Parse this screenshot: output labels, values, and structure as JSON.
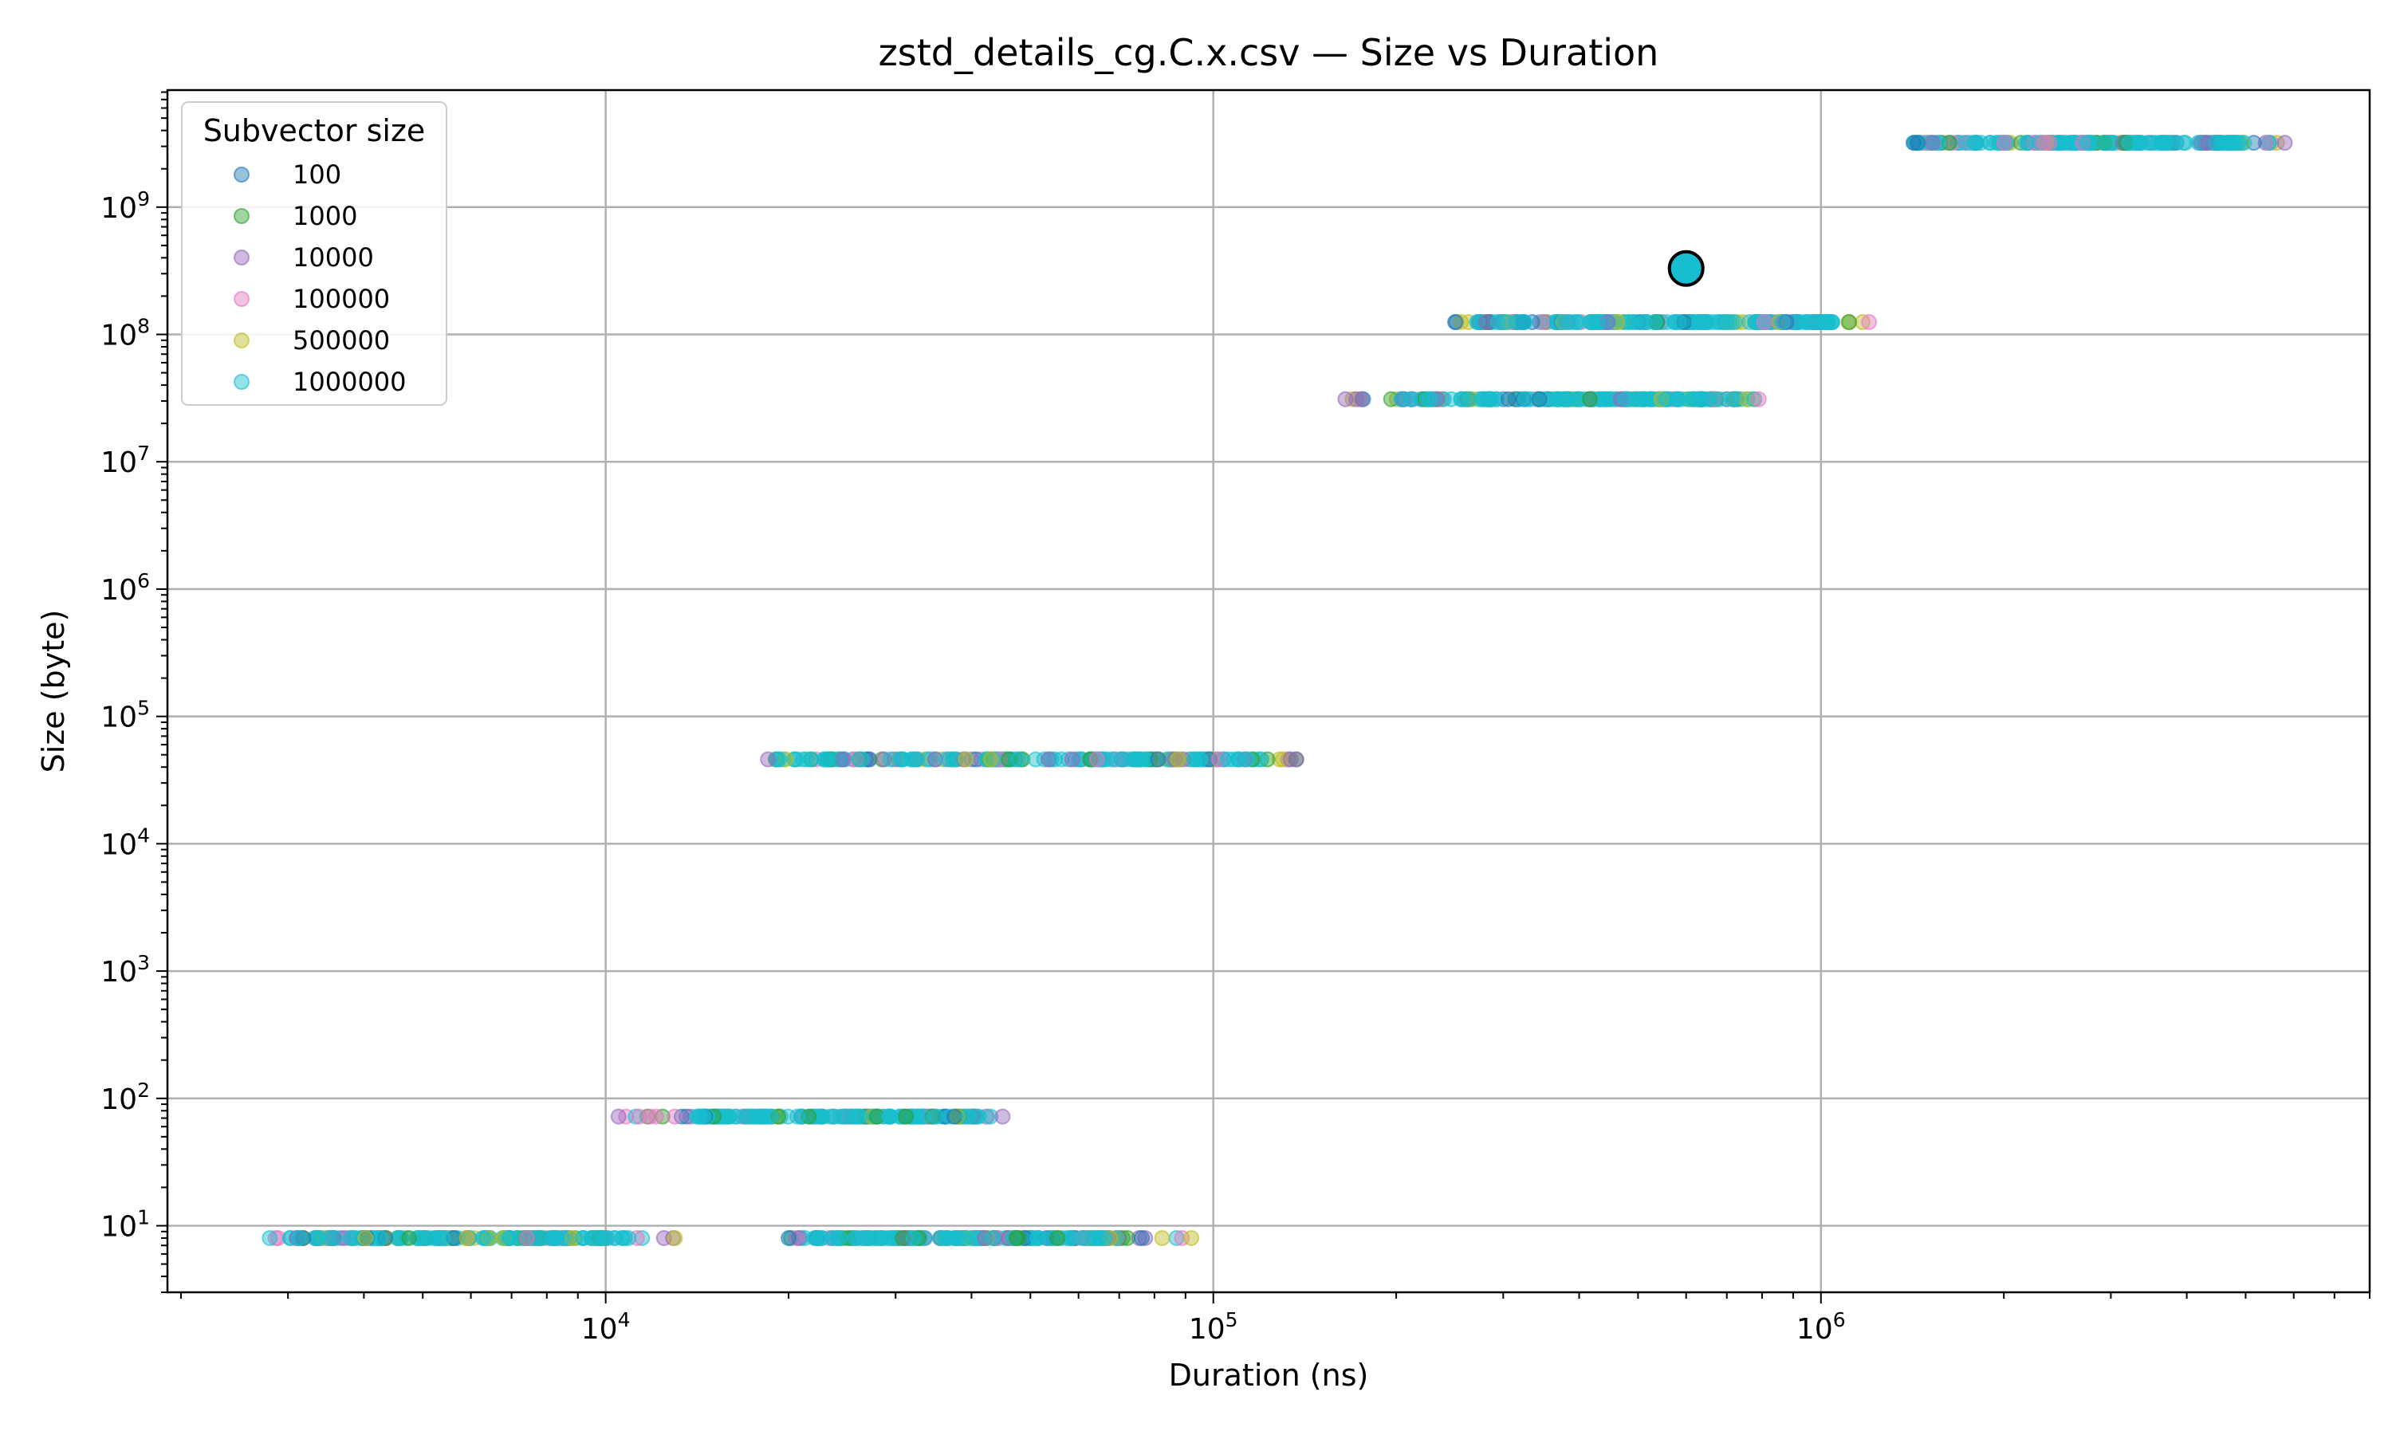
{
  "chart_data": {
    "type": "scatter",
    "title": "zstd_details_cg.C.x.csv — Size vs Duration",
    "xlabel": "Duration (ns)",
    "ylabel": "Size (byte)",
    "xscale": "log",
    "yscale": "log",
    "xlim": [
      1900,
      8000000
    ],
    "ylim": [
      3,
      8300000000
    ],
    "x_ticks": [
      {
        "value": 10000,
        "base": "10",
        "exp": "4"
      },
      {
        "value": 100000,
        "base": "10",
        "exp": "5"
      },
      {
        "value": 1000000,
        "base": "10",
        "exp": "6"
      }
    ],
    "y_ticks": [
      {
        "value": 10,
        "base": "10",
        "exp": "1"
      },
      {
        "value": 100,
        "base": "10",
        "exp": "2"
      },
      {
        "value": 1000,
        "base": "10",
        "exp": "3"
      },
      {
        "value": 10000,
        "base": "10",
        "exp": "4"
      },
      {
        "value": 100000,
        "base": "10",
        "exp": "5"
      },
      {
        "value": 1000000,
        "base": "10",
        "exp": "6"
      },
      {
        "value": 10000000,
        "base": "10",
        "exp": "7"
      },
      {
        "value": 100000000,
        "base": "10",
        "exp": "8"
      },
      {
        "value": 1000000000,
        "base": "10",
        "exp": "9"
      }
    ],
    "grid": true,
    "legend_title": "Subvector size",
    "legend_position": "top-left",
    "series": [
      {
        "name": "100",
        "color": "#1f77b4"
      },
      {
        "name": "1000",
        "color": "#2ca02c"
      },
      {
        "name": "10000",
        "color": "#9467bd"
      },
      {
        "name": "100000",
        "color": "#e377c2"
      },
      {
        "name": "500000",
        "color": "#bcbd22"
      },
      {
        "name": "1000000",
        "color": "#17becf"
      }
    ],
    "clusters": [
      {
        "size": 8,
        "duration_min": 2800,
        "duration_max": 13000,
        "dense_min": 3000,
        "dense_max": 11000
      },
      {
        "size": 8,
        "duration_min": 20000,
        "duration_max": 92000,
        "dense_min": 22000,
        "dense_max": 70000
      },
      {
        "size": 72,
        "duration_min": 10500,
        "duration_max": 45000,
        "dense_min": 14000,
        "dense_max": 42000
      },
      {
        "size": 46000,
        "duration_min": 18500,
        "duration_max": 137000,
        "dense_min": 19000,
        "dense_max": 120000
      },
      {
        "size": 31000000,
        "duration_min": 165000,
        "duration_max": 790000,
        "dense_min": 200000,
        "dense_max": 780000
      },
      {
        "size": 125000000,
        "duration_min": 250000,
        "duration_max": 1200000,
        "dense_min": 270000,
        "dense_max": 1050000
      },
      {
        "size": 3200000000,
        "duration_min": 1420000,
        "duration_max": 5800000,
        "dense_min": 1420000,
        "dense_max": 5000000
      }
    ],
    "highlight_point": {
      "x": 600000,
      "y": 330000000,
      "color": "#17becf"
    }
  }
}
